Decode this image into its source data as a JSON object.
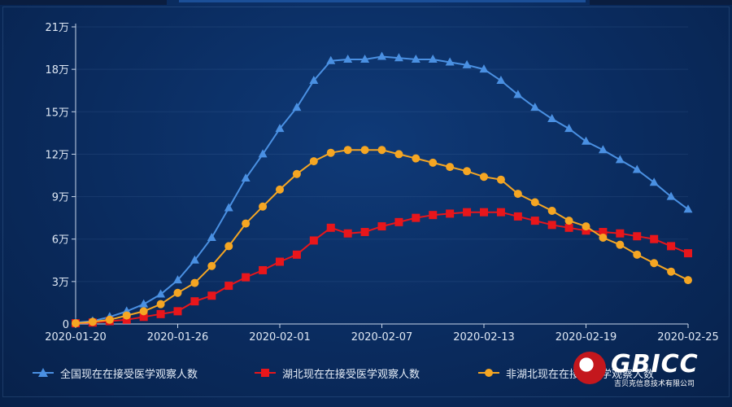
{
  "chart_data": {
    "type": "line",
    "x": [
      "2020-01-20",
      "2020-01-21",
      "2020-01-22",
      "2020-01-23",
      "2020-01-24",
      "2020-01-25",
      "2020-01-26",
      "2020-01-27",
      "2020-01-28",
      "2020-01-29",
      "2020-01-30",
      "2020-01-31",
      "2020-02-01",
      "2020-02-02",
      "2020-02-03",
      "2020-02-04",
      "2020-02-05",
      "2020-02-06",
      "2020-02-07",
      "2020-02-08",
      "2020-02-09",
      "2020-02-10",
      "2020-02-11",
      "2020-02-12",
      "2020-02-13",
      "2020-02-14",
      "2020-02-15",
      "2020-02-16",
      "2020-02-17",
      "2020-02-18",
      "2020-02-19",
      "2020-02-20",
      "2020-02-21",
      "2020-02-22",
      "2020-02-23",
      "2020-02-24",
      "2020-02-25"
    ],
    "x_tick_labels": [
      "2020-01-20",
      "2020-01-26",
      "2020-02-01",
      "2020-02-07",
      "2020-02-13",
      "2020-02-19",
      "2020-02-25"
    ],
    "y_tick_labels": [
      "0",
      "3万",
      "6万",
      "9万",
      "12万",
      "15万",
      "18万",
      "21万"
    ],
    "ylim": [
      0,
      210000
    ],
    "series": [
      {
        "name": "全国现在在接受医学观察人数",
        "color": "#4a90e2",
        "marker": "triangle",
        "values": [
          1000,
          2000,
          5000,
          9000,
          14000,
          21000,
          31000,
          45000,
          61000,
          82000,
          103000,
          120000,
          138000,
          153000,
          172000,
          186000,
          187000,
          187000,
          189000,
          188000,
          187000,
          187000,
          185000,
          183000,
          180000,
          172000,
          162000,
          153000,
          145000,
          138000,
          129000,
          123000,
          116000,
          109000,
          100000,
          90000,
          81000
        ]
      },
      {
        "name": "湖北现在在接受医学观察人数",
        "color": "#e8161b",
        "marker": "square",
        "values": [
          500,
          1000,
          2000,
          3000,
          5000,
          7000,
          9000,
          16000,
          20000,
          27000,
          33000,
          38000,
          44000,
          49000,
          59000,
          68000,
          64000,
          65000,
          69000,
          72000,
          75000,
          77000,
          78000,
          79000,
          79000,
          79000,
          76000,
          73000,
          70000,
          68000,
          66000,
          65000,
          64000,
          62000,
          60000,
          55000,
          50000
        ]
      },
      {
        "name": "非湖北现在在接受医学观察人数",
        "color": "#f5a623",
        "marker": "circle",
        "values": [
          500,
          1500,
          3000,
          6000,
          9000,
          14000,
          22000,
          29000,
          41000,
          55000,
          71000,
          83000,
          95000,
          106000,
          115000,
          121000,
          123000,
          123000,
          123000,
          120000,
          117000,
          114000,
          111000,
          108000,
          104000,
          102000,
          92000,
          86000,
          80000,
          73000,
          69000,
          61000,
          56000,
          49000,
          43000,
          37000,
          31000
        ]
      }
    ]
  },
  "logo": {
    "name": "GBICC",
    "subtitle": "吉贝克信息技术有限公司"
  }
}
